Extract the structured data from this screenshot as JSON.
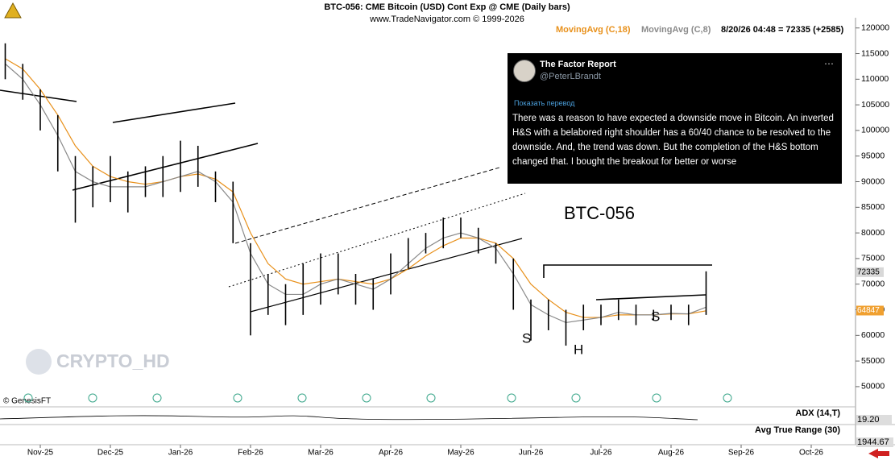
{
  "chart_data": {
    "type": "ohlc",
    "title": "BTC-056:  CME Bitcoin (USD) Cont Exp @ CME  (Daily bars)",
    "subtitle": "www.TradeNavigator.com © 1999-2026",
    "last_quote": "8/20/26 04:48 = 72335 (+2585)",
    "categories": [
      null,
      null,
      "Nov-25",
      null,
      null,
      null,
      "Dec-25",
      null,
      null,
      null,
      "Jan-26",
      null,
      null,
      null,
      "Feb-26",
      null,
      null,
      null,
      "Mar-26",
      null,
      null,
      null,
      "Apr-26",
      null,
      null,
      null,
      "May-26",
      null,
      null,
      null,
      "Jun-26",
      null,
      null,
      null,
      "Jul-26",
      null,
      null,
      null,
      "Aug-26",
      null,
      null,
      null,
      "Sep-26",
      null,
      null,
      null,
      "Oct-26",
      null,
      null
    ],
    "high": [
      117000,
      113000,
      108000,
      103000,
      95000,
      93000,
      95000,
      92000,
      93000,
      95000,
      98000,
      97000,
      92000,
      90000,
      78000,
      72000,
      70000,
      74000,
      76000,
      76000,
      72000,
      71000,
      76000,
      79000,
      80000,
      83000,
      83000,
      81000,
      78000,
      75000,
      67000,
      67000,
      65000,
      66000,
      66000,
      67000,
      66000,
      65000,
      66000,
      66000,
      72500,
      null,
      null,
      null,
      null,
      null,
      null,
      null,
      null
    ],
    "low": [
      110000,
      106000,
      100000,
      92000,
      82000,
      85000,
      86000,
      84000,
      87000,
      87000,
      88000,
      89000,
      86000,
      78000,
      60000,
      64000,
      62000,
      64000,
      66000,
      68000,
      66000,
      65000,
      68000,
      73000,
      76000,
      77000,
      79000,
      76000,
      74000,
      65000,
      59000,
      61000,
      58000,
      61000,
      62000,
      63000,
      62000,
      63000,
      63000,
      62000,
      64000,
      null,
      null,
      null,
      null,
      null,
      null,
      null,
      null
    ],
    "color": "#000000",
    "moving_averages": [
      {
        "name": "MovingAvg (C,18)",
        "color": "#e8901a",
        "values": [
          114000,
          112000,
          108000,
          103000,
          97000,
          93000,
          91000,
          90000,
          89500,
          90000,
          91000,
          91500,
          90500,
          88000,
          80000,
          74000,
          71000,
          70000,
          70500,
          71000,
          70500,
          70000,
          71000,
          73000,
          75500,
          77500,
          79000,
          79000,
          78000,
          75000,
          70000,
          67000,
          64500,
          63500,
          63500,
          64000,
          64000,
          64000,
          64200,
          64200,
          64800,
          null,
          null,
          null,
          null,
          null,
          null,
          null,
          null
        ]
      },
      {
        "name": "MovingAvg (C,8)",
        "color": "#8a8a8a",
        "values": [
          113000,
          110000,
          105000,
          99000,
          92000,
          90000,
          89000,
          89000,
          89000,
          90000,
          91000,
          92000,
          90000,
          86000,
          76000,
          70000,
          68000,
          68000,
          70000,
          71000,
          70000,
          69000,
          71000,
          74000,
          77000,
          79000,
          80000,
          79000,
          77000,
          72000,
          66000,
          64000,
          62500,
          63000,
          63500,
          64500,
          64000,
          64000,
          64300,
          64200,
          65500,
          null,
          null,
          null,
          null,
          null,
          null,
          null,
          null
        ]
      }
    ],
    "price_labels": [
      72335,
      64847
    ],
    "ylim": [
      47000,
      122000
    ],
    "yticks": [
      50000,
      55000,
      60000,
      65000,
      70000,
      75000,
      80000,
      85000,
      90000,
      95000,
      100000,
      105000,
      110000,
      115000,
      120000
    ],
    "annotations": [
      "BTC-056",
      "S",
      "H",
      "S"
    ],
    "watermark": "CRYPTO_HD",
    "copyright": "© GenesisFT",
    "indicators": [
      {
        "name": "ADX (14,T)",
        "last_value": "19.20"
      },
      {
        "name": "Avg True Range (30)",
        "last_value": "1944.67"
      }
    ]
  },
  "tweet": {
    "name": "The Factor Report",
    "handle": "@PeterLBrandt",
    "translate": "Показать перевод",
    "text": "There was a reason to have expected a downside move in Bitcoin. An inverted H&S with a belabored right shoulder has a 60/40 chance to be resolved to the downside. And, the trend was down. But the completion of the H&S bottom changed that. I bought the breakout for better or worse"
  }
}
